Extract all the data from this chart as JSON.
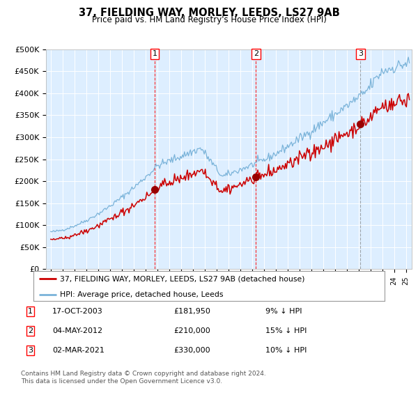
{
  "title": "37, FIELDING WAY, MORLEY, LEEDS, LS27 9AB",
  "subtitle": "Price paid vs. HM Land Registry's House Price Index (HPI)",
  "background_color": "#ddeeff",
  "hpi_color": "#7ab3d9",
  "price_color": "#cc0000",
  "marker_color": "#990000",
  "ylim": [
    0,
    500000
  ],
  "yticks": [
    0,
    50000,
    100000,
    150000,
    200000,
    250000,
    300000,
    350000,
    400000,
    450000,
    500000
  ],
  "transactions": [
    {
      "year": 2003.79,
      "price": 181950,
      "label": "1"
    },
    {
      "year": 2012.34,
      "price": 210000,
      "label": "2"
    },
    {
      "year": 2021.17,
      "price": 330000,
      "label": "3"
    }
  ],
  "transaction_dates": [
    "17-OCT-2003",
    "04-MAY-2012",
    "02-MAR-2021"
  ],
  "transaction_prices": [
    "£181,950",
    "£210,000",
    "£330,000"
  ],
  "transaction_hpi": [
    "9% ↓ HPI",
    "15% ↓ HPI",
    "10% ↓ HPI"
  ],
  "legend_property": "37, FIELDING WAY, MORLEY, LEEDS, LS27 9AB (detached house)",
  "legend_hpi": "HPI: Average price, detached house, Leeds",
  "footer": "Contains HM Land Registry data © Crown copyright and database right 2024.\nThis data is licensed under the Open Government Licence v3.0."
}
